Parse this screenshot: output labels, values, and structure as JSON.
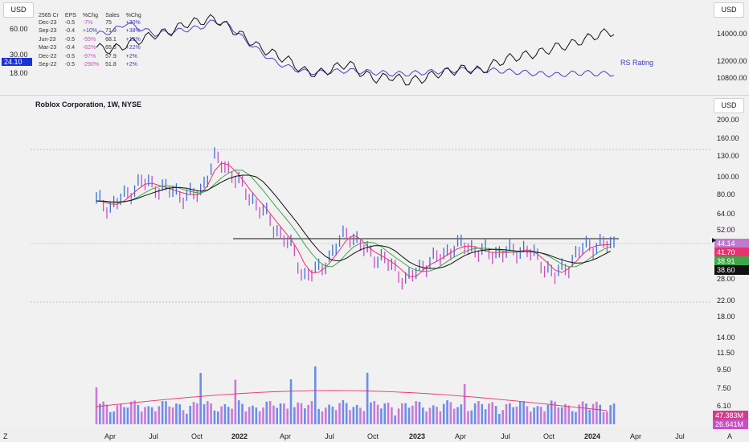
{
  "header": {
    "currency_top_left": "USD",
    "currency_top_right": "USD",
    "currency_main": "USD",
    "rs_rating_label": "RS Rating",
    "rs_current": "24.10",
    "left_ticks": [
      "60.00",
      "30.00",
      "18.00"
    ],
    "right_ticks_top": [
      "14000.00",
      "12000.00",
      "10800.00"
    ]
  },
  "fundamentals": {
    "headers": [
      "2565 Cr",
      "EPS",
      "%Chg",
      "Sales",
      "%Chg"
    ],
    "rows": [
      {
        "q": "Dec-23",
        "eps": "-0.5",
        "eps_chg": "-7%",
        "sales": "75",
        "sales_chg": "+30%",
        "eps_sign": "neg"
      },
      {
        "q": "Sep-23",
        "eps": "-0.4",
        "eps_chg": "+10%",
        "sales": "71.9",
        "sales_chg": "+38%",
        "eps_sign": "pos"
      },
      {
        "q": "Jun-23",
        "eps": "-0.5",
        "eps_chg": "-55%",
        "sales": "68.1",
        "sales_chg": "+15%",
        "eps_sign": "neg"
      },
      {
        "q": "Mar-23",
        "eps": "-0.4",
        "eps_chg": "-62%",
        "sales": "65.5",
        "sales_chg": "+22%",
        "eps_sign": "neg"
      },
      {
        "q": "Dec-22",
        "eps": "-0.5",
        "eps_chg": "-97%",
        "sales": "57.9",
        "sales_chg": "+2%",
        "eps_sign": "neg"
      },
      {
        "q": "Sep-22",
        "eps": "-0.5",
        "eps_chg": "-290%",
        "sales": "51.8",
        "sales_chg": "+2%",
        "eps_sign": "neg"
      }
    ]
  },
  "main": {
    "title": "Roblox Corporation, 1W, NYSE",
    "price_ticks": [
      "200.00",
      "160.00",
      "130.00",
      "100.00",
      "80.00",
      "64.00",
      "52.00",
      "28.00",
      "22.00",
      "18.00"
    ],
    "volume_ticks": [
      "14.00",
      "11.50",
      "9.50",
      "7.50",
      "6.10"
    ],
    "price_labels": [
      {
        "value": "44.14",
        "color": "#c07ad0"
      },
      {
        "value": "41.70",
        "color": "#e8326e"
      },
      {
        "value": "38.91",
        "color": "#3fa64a"
      },
      {
        "value": "38.60",
        "color": "#111111"
      }
    ],
    "volume_labels": [
      {
        "value": "47.383M",
        "color": "#d23c8c"
      },
      {
        "value": "26.641M",
        "color": "#c94fc4"
      }
    ]
  },
  "xaxis": {
    "left_corner": "Z",
    "right_corner": "A",
    "labels": [
      {
        "text": "Apr",
        "bold": false
      },
      {
        "text": "Jul",
        "bold": false
      },
      {
        "text": "Oct",
        "bold": false
      },
      {
        "text": "2022",
        "bold": true
      },
      {
        "text": "Apr",
        "bold": false
      },
      {
        "text": "Jul",
        "bold": false
      },
      {
        "text": "Oct",
        "bold": false
      },
      {
        "text": "2023",
        "bold": true
      },
      {
        "text": "Apr",
        "bold": false
      },
      {
        "text": "Jul",
        "bold": false
      },
      {
        "text": "Oct",
        "bold": false
      },
      {
        "text": "2024",
        "bold": true
      },
      {
        "text": "Apr",
        "bold": false
      },
      {
        "text": "Jul",
        "bold": false
      }
    ]
  },
  "chart_data": {
    "type": "line",
    "title": "Roblox Corporation, 1W, NYSE",
    "x": [
      "2021-03",
      "2021-04",
      "2021-05",
      "2021-06",
      "2021-07",
      "2021-08",
      "2021-09",
      "2021-10",
      "2021-11",
      "2021-12",
      "2022-01",
      "2022-02",
      "2022-03",
      "2022-04",
      "2022-05",
      "2022-06",
      "2022-07",
      "2022-08",
      "2022-09",
      "2022-10",
      "2022-11",
      "2022-12",
      "2023-01",
      "2023-02",
      "2023-03",
      "2023-04",
      "2023-05",
      "2023-06",
      "2023-07",
      "2023-08",
      "2023-09",
      "2023-10",
      "2023-11",
      "2023-12",
      "2024-01",
      "2024-02"
    ],
    "series": [
      {
        "name": "Price",
        "color": "#3a6fd8",
        "values": [
          75,
          70,
          80,
          95,
          90,
          85,
          80,
          82,
          125,
          110,
          85,
          70,
          55,
          45,
          30,
          32,
          40,
          52,
          42,
          38,
          34,
          28,
          34,
          37,
          42,
          44,
          40,
          40,
          40,
          42,
          36,
          30,
          35,
          43,
          44,
          44
        ]
      },
      {
        "name": "RS Rating",
        "color": "#4a3fc4",
        "values": [
          60,
          62,
          70,
          65,
          60,
          62,
          64,
          66,
          72,
          68,
          55,
          45,
          35,
          30,
          26,
          25,
          26,
          27,
          26,
          25,
          24,
          24,
          25,
          26,
          27,
          28,
          27,
          27,
          26,
          25,
          24,
          23,
          24,
          25,
          24,
          24.1
        ]
      }
    ],
    "ylim": [
      18,
      200
    ],
    "yscale": "log",
    "grid": false
  }
}
